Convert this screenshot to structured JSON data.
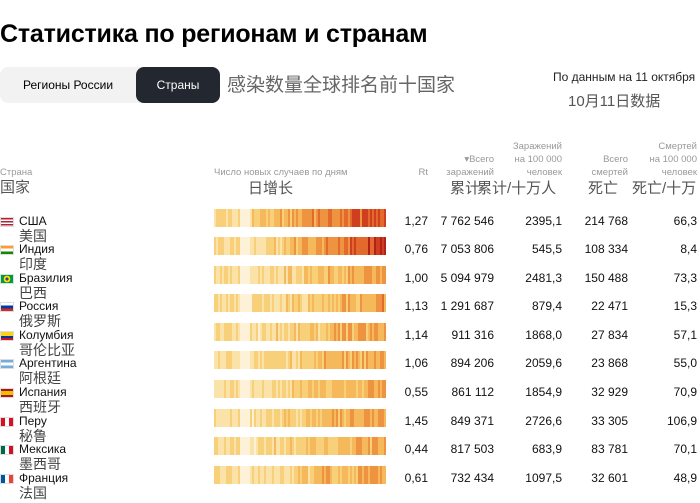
{
  "header": {
    "title": "Статистика по регионам и странам",
    "tab_regions": "Регионы России",
    "tab_countries": "Страны",
    "cn_title": "感染数量全球排名前十国家",
    "date_ru": "По данным на 11 октября",
    "date_cn": "10月11日数据"
  },
  "columns": {
    "country": "Страна",
    "country_cn": "国家",
    "daily": "Число новых случаев по дням",
    "daily_cn": "日增长",
    "rt": "Rt",
    "total_cases_l1": "▾Всего",
    "total_cases_l2": "заражений",
    "total_cases_cn": "累计",
    "cases_per_l1": "Заражений",
    "cases_per_l2": "на 100 000",
    "cases_per_l3": "человек",
    "cases_per_cn": "累计/十万人",
    "total_deaths_l1": "Всего",
    "total_deaths_l2": "смертей",
    "total_deaths_cn": "死亡",
    "deaths_per_l1": "Смертей",
    "deaths_per_l2": "на 100 000",
    "deaths_per_l3": "человек",
    "deaths_per_cn": "死亡/十万"
  },
  "rows": [
    {
      "name": "США",
      "name_cn": "美国",
      "rt": "1,27",
      "cases": "7 762 546",
      "cases_per": "2395,1",
      "deaths": "214 768",
      "deaths_per": "66,3",
      "flag": "us"
    },
    {
      "name": "Индия",
      "name_cn": "印度",
      "rt": "0,76",
      "cases": "7 053 806",
      "cases_per": "545,5",
      "deaths": "108 334",
      "deaths_per": "8,4",
      "flag": "in"
    },
    {
      "name": "Бразилия",
      "name_cn": "巴西",
      "rt": "1,00",
      "cases": "5 094 979",
      "cases_per": "2481,3",
      "deaths": "150 488",
      "deaths_per": "73,3",
      "flag": "br"
    },
    {
      "name": "Россия",
      "name_cn": "俄罗斯",
      "rt": "1,13",
      "cases": "1 291 687",
      "cases_per": "879,4",
      "deaths": "22 471",
      "deaths_per": "15,3",
      "flag": "ru"
    },
    {
      "name": "Колумбия",
      "name_cn": "哥伦比亚",
      "rt": "1,14",
      "cases": "911 316",
      "cases_per": "1868,0",
      "deaths": "27 834",
      "deaths_per": "57,1",
      "flag": "co"
    },
    {
      "name": "Аргентина",
      "name_cn": "阿根廷",
      "rt": "1,06",
      "cases": "894 206",
      "cases_per": "2059,6",
      "deaths": "23 868",
      "deaths_per": "55,0",
      "flag": "ar"
    },
    {
      "name": "Испания",
      "name_cn": "西班牙",
      "rt": "0,55",
      "cases": "861 112",
      "cases_per": "1854,9",
      "deaths": "32 929",
      "deaths_per": "70,9",
      "flag": "es"
    },
    {
      "name": "Перу",
      "name_cn": "秘鲁",
      "rt": "1,45",
      "cases": "849 371",
      "cases_per": "2726,6",
      "deaths": "33 305",
      "deaths_per": "106,9",
      "flag": "pe"
    },
    {
      "name": "Мексика",
      "name_cn": "墨西哥",
      "rt": "0,44",
      "cases": "817 503",
      "cases_per": "683,9",
      "deaths": "83 781",
      "deaths_per": "70,1",
      "flag": "mx"
    },
    {
      "name": "Франция",
      "name_cn": "法国",
      "rt": "0,61",
      "cases": "732 434",
      "cases_per": "1097,5",
      "deaths": "32 601",
      "deaths_per": "48,9",
      "flag": "fr"
    }
  ]
}
